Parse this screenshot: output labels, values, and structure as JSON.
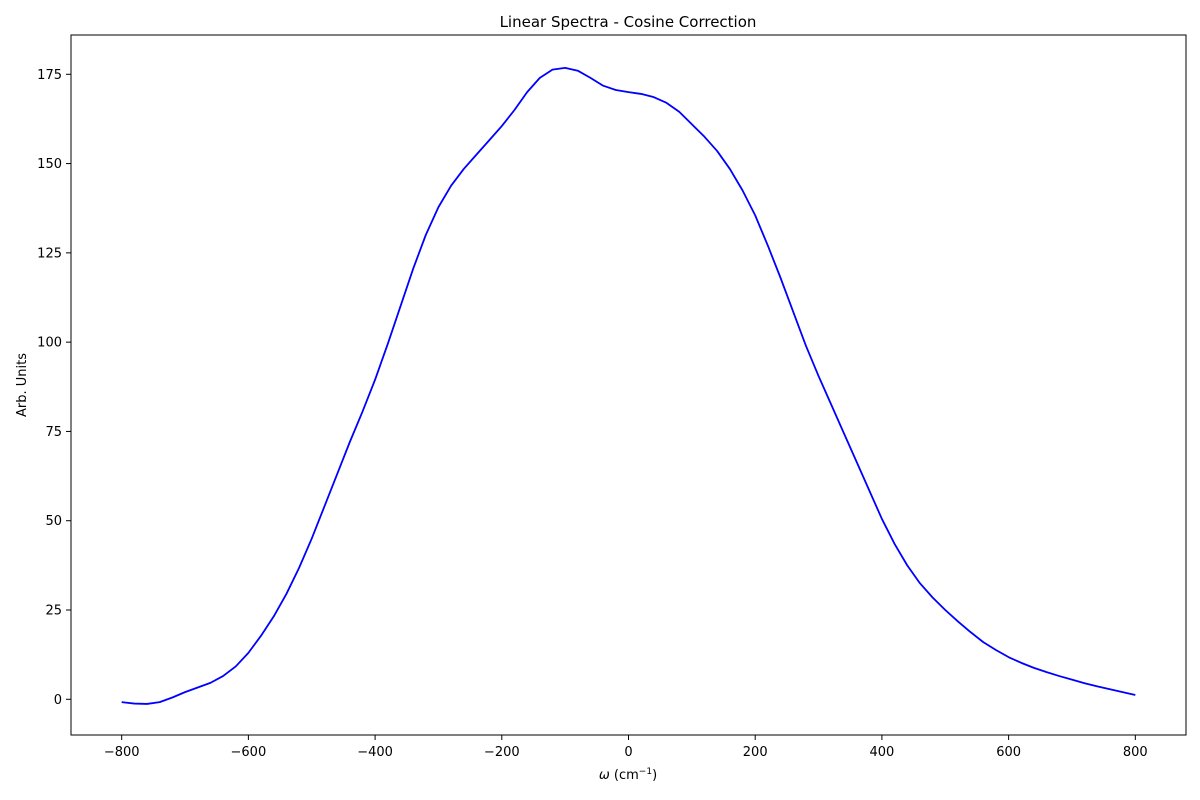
{
  "chart_data": {
    "type": "line",
    "title": "Linear Spectra - Cosine Correction",
    "xlabel_prefix": "ω",
    "xlabel_unit": "(cm",
    "xlabel_superscript": "−1",
    "xlabel_close": ")",
    "ylabel": "Arb. Units",
    "xlim": [
      -880,
      880
    ],
    "ylim": [
      -10,
      186
    ],
    "xticks": [
      -800,
      -600,
      -400,
      -200,
      0,
      200,
      400,
      600,
      800
    ],
    "yticks": [
      0,
      25,
      50,
      75,
      100,
      125,
      150,
      175
    ],
    "xtick_labels": [
      "−800",
      "−600",
      "−400",
      "−200",
      "0",
      "200",
      "400",
      "600",
      "800"
    ],
    "ytick_labels": [
      "0",
      "25",
      "50",
      "75",
      "100",
      "125",
      "150",
      "175"
    ],
    "grid": false,
    "legend": "none",
    "series": [
      {
        "color": "#0000ff",
        "x": [
          -800,
          -780,
          -760,
          -740,
          -720,
          -700,
          -680,
          -660,
          -640,
          -620,
          -600,
          -580,
          -560,
          -540,
          -520,
          -500,
          -480,
          -460,
          -440,
          -420,
          -400,
          -380,
          -360,
          -340,
          -320,
          -300,
          -280,
          -260,
          -240,
          -220,
          -200,
          -180,
          -160,
          -140,
          -120,
          -100,
          -80,
          -60,
          -40,
          -20,
          0,
          20,
          40,
          60,
          80,
          100,
          120,
          140,
          160,
          180,
          200,
          220,
          240,
          260,
          280,
          300,
          320,
          340,
          360,
          380,
          400,
          420,
          440,
          460,
          480,
          500,
          520,
          540,
          560,
          580,
          600,
          620,
          640,
          660,
          680,
          700,
          720,
          740,
          760,
          780,
          800
        ],
        "y": [
          -0.8,
          -1.2,
          -1.3,
          -0.8,
          0.5,
          2.0,
          3.3,
          4.6,
          6.5,
          9.2,
          13.0,
          17.8,
          23.2,
          29.5,
          36.8,
          45.0,
          54.0,
          63.0,
          72.0,
          80.5,
          89.5,
          99.5,
          110.0,
          120.5,
          130.0,
          137.8,
          143.8,
          148.5,
          152.5,
          156.5,
          160.5,
          165.0,
          170.0,
          174.0,
          176.3,
          176.8,
          176.0,
          174.0,
          171.8,
          170.6,
          170.0,
          169.5,
          168.6,
          167.0,
          164.5,
          161.0,
          157.5,
          153.5,
          148.5,
          142.5,
          135.5,
          127.0,
          118.0,
          108.5,
          99.0,
          90.5,
          82.5,
          74.5,
          66.5,
          58.5,
          50.5,
          43.5,
          37.5,
          32.5,
          28.5,
          25.0,
          21.8,
          18.8,
          16.0,
          13.8,
          11.8,
          10.2,
          8.8,
          7.6,
          6.5,
          5.5,
          4.5,
          3.6,
          2.8,
          2.0,
          1.2
        ]
      }
    ]
  }
}
